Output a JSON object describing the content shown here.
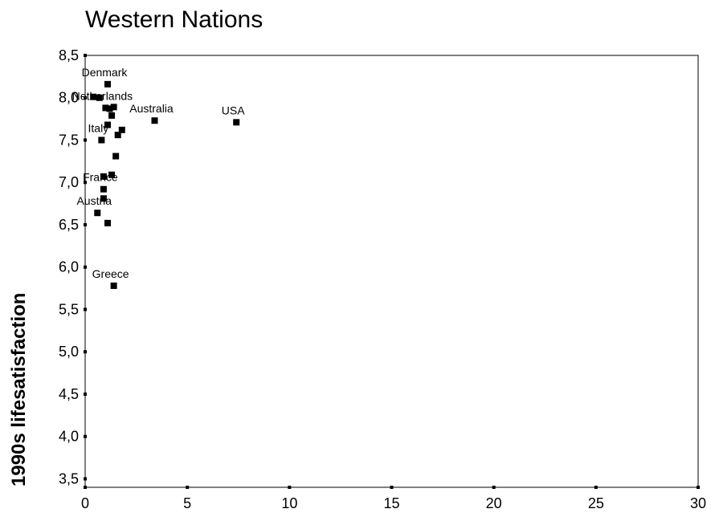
{
  "chart_data": {
    "type": "scatter",
    "title": "Western Nations",
    "xlabel": "",
    "ylabel": "1990s lifesatisfaction",
    "xlim": [
      0,
      30
    ],
    "ylim": [
      3.4,
      8.5
    ],
    "x_ticks": [
      "0",
      "5",
      "10",
      "15",
      "20",
      "25",
      "30"
    ],
    "y_ticks": [
      "3,5",
      "4,0",
      "4,5",
      "5,0",
      "5,5",
      "6,0",
      "6,5",
      "7,0",
      "7,5",
      "8,0",
      "8,5"
    ],
    "grid": false,
    "points": [
      {
        "x": 1.1,
        "y": 8.16,
        "label": "Denmark"
      },
      {
        "x": 0.4,
        "y": 8.01,
        "label": ""
      },
      {
        "x": 0.7,
        "y": 8.0,
        "label": ""
      },
      {
        "x": 1.0,
        "y": 7.88,
        "label": "Netherlands"
      },
      {
        "x": 1.2,
        "y": 7.87,
        "label": ""
      },
      {
        "x": 1.4,
        "y": 7.89,
        "label": ""
      },
      {
        "x": 1.3,
        "y": 7.79,
        "label": ""
      },
      {
        "x": 3.4,
        "y": 7.73,
        "label": "Australia"
      },
      {
        "x": 7.4,
        "y": 7.71,
        "label": "USA"
      },
      {
        "x": 1.1,
        "y": 7.68,
        "label": ""
      },
      {
        "x": 1.8,
        "y": 7.62,
        "label": ""
      },
      {
        "x": 1.6,
        "y": 7.56,
        "label": ""
      },
      {
        "x": 0.8,
        "y": 7.5,
        "label": "Italy"
      },
      {
        "x": 1.5,
        "y": 7.31,
        "label": ""
      },
      {
        "x": 1.3,
        "y": 7.09,
        "label": ""
      },
      {
        "x": 0.9,
        "y": 7.07,
        "label": ""
      },
      {
        "x": 0.9,
        "y": 6.92,
        "label": "France"
      },
      {
        "x": 0.9,
        "y": 6.81,
        "label": ""
      },
      {
        "x": 0.6,
        "y": 6.64,
        "label": "Austria"
      },
      {
        "x": 1.1,
        "y": 6.52,
        "label": ""
      },
      {
        "x": 1.4,
        "y": 5.78,
        "label": "Greece"
      }
    ]
  }
}
